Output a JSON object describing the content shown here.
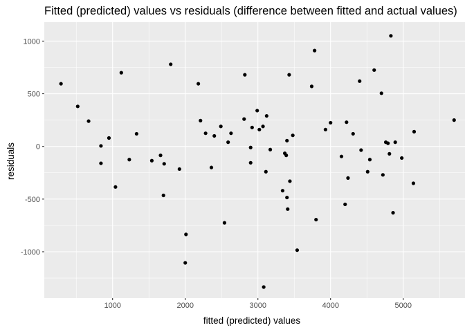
{
  "chart_data": {
    "type": "scatter",
    "title": "Fitted (predicted) values vs residuals (difference between fitted and actual values)",
    "xlabel": "fitted (predicted) values",
    "ylabel": "residuals",
    "xlim": [
      60,
      5850
    ],
    "ylim": [
      -1440,
      1180
    ],
    "x_ticks": [
      1000,
      2000,
      3000,
      4000,
      5000
    ],
    "x_tick_labels": [
      "1000",
      "2000",
      "3000",
      "4000",
      "5000"
    ],
    "y_ticks": [
      -1000,
      -500,
      0,
      500,
      1000
    ],
    "y_tick_labels": [
      "-1000",
      "-500",
      "0",
      "500",
      "1000"
    ],
    "grid": true,
    "legend": "none",
    "colors": {
      "panel_background": "#ebebeb",
      "grid_major": "#ffffff",
      "point": "#000000",
      "tick_label": "#4d4d4d",
      "tick_mark": "#333333"
    },
    "points": [
      {
        "x": 290,
        "y": 595
      },
      {
        "x": 520,
        "y": 380
      },
      {
        "x": 670,
        "y": 240
      },
      {
        "x": 840,
        "y": 5
      },
      {
        "x": 840,
        "y": -160
      },
      {
        "x": 950,
        "y": 80
      },
      {
        "x": 1040,
        "y": -385
      },
      {
        "x": 1120,
        "y": 700
      },
      {
        "x": 1230,
        "y": -125
      },
      {
        "x": 1330,
        "y": 120
      },
      {
        "x": 1540,
        "y": -135
      },
      {
        "x": 1660,
        "y": -85
      },
      {
        "x": 1700,
        "y": -465
      },
      {
        "x": 1710,
        "y": -165
      },
      {
        "x": 1800,
        "y": 780
      },
      {
        "x": 1920,
        "y": -215
      },
      {
        "x": 2000,
        "y": -1105
      },
      {
        "x": 2010,
        "y": -835
      },
      {
        "x": 2180,
        "y": 595
      },
      {
        "x": 2210,
        "y": 245
      },
      {
        "x": 2280,
        "y": 125
      },
      {
        "x": 2360,
        "y": -200
      },
      {
        "x": 2400,
        "y": 100
      },
      {
        "x": 2490,
        "y": 190
      },
      {
        "x": 2540,
        "y": -725
      },
      {
        "x": 2590,
        "y": 40
      },
      {
        "x": 2630,
        "y": 125
      },
      {
        "x": 2810,
        "y": 260
      },
      {
        "x": 2820,
        "y": 680
      },
      {
        "x": 2900,
        "y": -10
      },
      {
        "x": 2900,
        "y": -155
      },
      {
        "x": 2920,
        "y": 180
      },
      {
        "x": 2990,
        "y": 340
      },
      {
        "x": 3020,
        "y": 160
      },
      {
        "x": 3070,
        "y": 190
      },
      {
        "x": 3080,
        "y": -1335
      },
      {
        "x": 3110,
        "y": -240
      },
      {
        "x": 3120,
        "y": 290
      },
      {
        "x": 3170,
        "y": -30
      },
      {
        "x": 3340,
        "y": -420
      },
      {
        "x": 3370,
        "y": -65
      },
      {
        "x": 3390,
        "y": -85
      },
      {
        "x": 3400,
        "y": -485
      },
      {
        "x": 3400,
        "y": 55
      },
      {
        "x": 3410,
        "y": -595
      },
      {
        "x": 3430,
        "y": 680
      },
      {
        "x": 3440,
        "y": -330
      },
      {
        "x": 3480,
        "y": 105
      },
      {
        "x": 3540,
        "y": -985
      },
      {
        "x": 3740,
        "y": 570
      },
      {
        "x": 3780,
        "y": 910
      },
      {
        "x": 3800,
        "y": -695
      },
      {
        "x": 3930,
        "y": 160
      },
      {
        "x": 4000,
        "y": 225
      },
      {
        "x": 4150,
        "y": -95
      },
      {
        "x": 4200,
        "y": -550
      },
      {
        "x": 4220,
        "y": 230
      },
      {
        "x": 4240,
        "y": -300
      },
      {
        "x": 4310,
        "y": 120
      },
      {
        "x": 4400,
        "y": 620
      },
      {
        "x": 4420,
        "y": -35
      },
      {
        "x": 4510,
        "y": -240
      },
      {
        "x": 4540,
        "y": -125
      },
      {
        "x": 4600,
        "y": 725
      },
      {
        "x": 4700,
        "y": 505
      },
      {
        "x": 4720,
        "y": -270
      },
      {
        "x": 4760,
        "y": 40
      },
      {
        "x": 4790,
        "y": 30
      },
      {
        "x": 4810,
        "y": -70
      },
      {
        "x": 4830,
        "y": 1050
      },
      {
        "x": 4860,
        "y": -630
      },
      {
        "x": 4890,
        "y": 40
      },
      {
        "x": 4980,
        "y": -110
      },
      {
        "x": 5140,
        "y": -350
      },
      {
        "x": 5150,
        "y": 140
      },
      {
        "x": 5700,
        "y": 250
      }
    ]
  }
}
